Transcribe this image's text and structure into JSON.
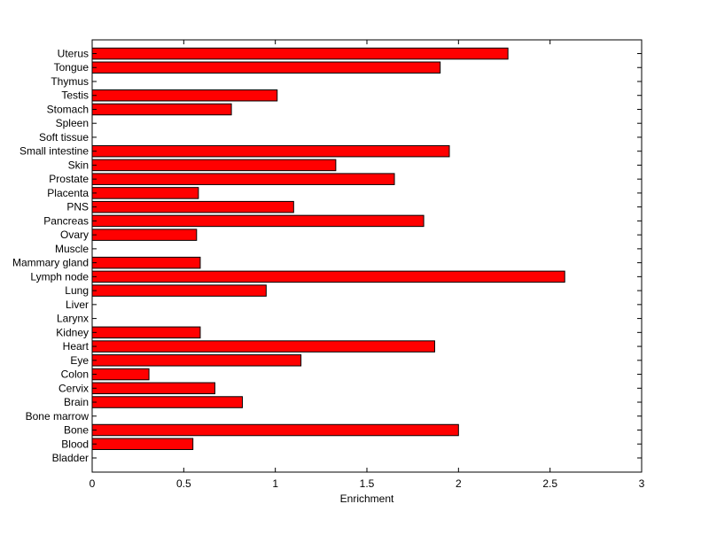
{
  "chart_data": {
    "type": "bar",
    "orientation": "horizontal",
    "title": "",
    "xlabel": "Enrichment",
    "ylabel": "",
    "xlim": [
      0,
      3
    ],
    "xticks": [
      "0",
      "0.5",
      "1",
      "1.5",
      "2",
      "2.5",
      "3"
    ],
    "grid": false,
    "bar_color": "#ff0000",
    "bar_edge_color": "#000000",
    "categories": [
      "Uterus",
      "Tongue",
      "Thymus",
      "Testis",
      "Stomach",
      "Spleen",
      "Soft tissue",
      "Small intestine",
      "Skin",
      "Prostate",
      "Placenta",
      "PNS",
      "Pancreas",
      "Ovary",
      "Muscle",
      "Mammary gland",
      "Lymph node",
      "Lung",
      "Liver",
      "Larynx",
      "Kidney",
      "Heart",
      "Eye",
      "Colon",
      "Cervix",
      "Brain",
      "Bone marrow",
      "Bone",
      "Blood",
      "Bladder"
    ],
    "values": [
      2.27,
      1.9,
      0,
      1.01,
      0.76,
      0,
      0,
      1.95,
      1.33,
      1.65,
      0.58,
      1.1,
      1.81,
      0.57,
      0,
      0.59,
      2.58,
      0.95,
      0,
      0,
      0.59,
      1.87,
      1.14,
      0.31,
      0.67,
      0.82,
      0,
      2.0,
      0.55,
      0
    ]
  }
}
